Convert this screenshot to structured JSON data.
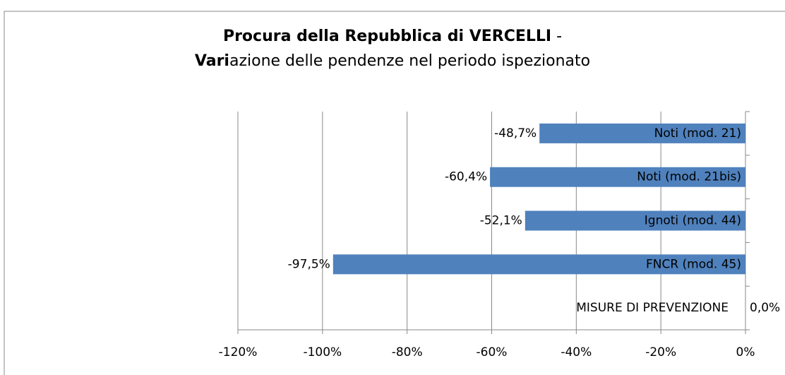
{
  "chart_data": {
    "type": "bar",
    "title": [
      [
        "Procura della Repubblica di VERCELLI",
        " -"
      ],
      [
        "Vari",
        "azione delle pendenze nel periodo ispezionato"
      ]
    ],
    "categories": [
      "Noti (mod. 21)",
      "Noti (mod. 21bis)",
      "Ignoti (mod. 44)",
      "FNCR (mod. 45)",
      "MISURE DI PREVENZIONE"
    ],
    "values": [
      -48.7,
      -60.4,
      -52.1,
      -97.5,
      0.0
    ],
    "value_labels": [
      "-48,7%",
      "-60,4%",
      "-52,1%",
      "-97,5%",
      "0,0%"
    ],
    "color": "#4f81bd",
    "xlim": [
      -120,
      0
    ],
    "xticks": [
      {
        "value": -120,
        "label": "-120%"
      },
      {
        "value": -100,
        "label": "-100%"
      },
      {
        "value": -80,
        "label": "-80%"
      },
      {
        "value": -60,
        "label": "-60%"
      },
      {
        "value": -40,
        "label": "-40%"
      },
      {
        "value": -20,
        "label": "-20%"
      },
      {
        "value": 0,
        "label": "0%"
      }
    ],
    "grid": true
  }
}
